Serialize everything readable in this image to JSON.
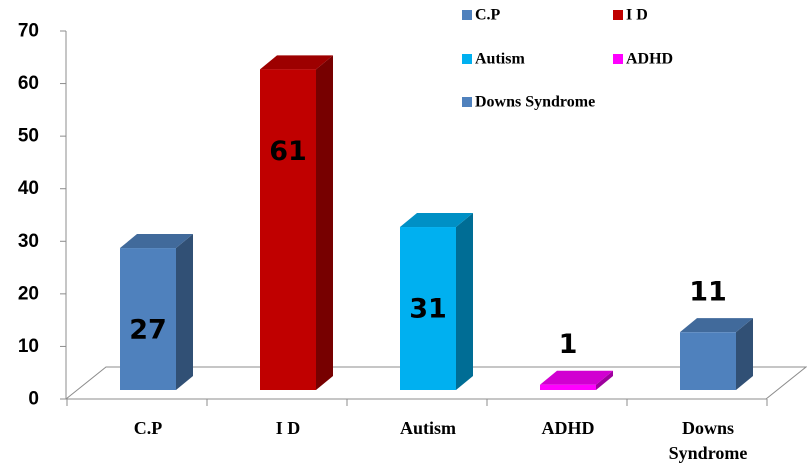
{
  "chart_data": {
    "type": "bar",
    "categories": [
      "C.P",
      "I D",
      "Autism",
      "ADHD",
      "Downs Syndrome"
    ],
    "category_tick_labels": [
      [
        "C.P"
      ],
      [
        "I D"
      ],
      [
        "Autism"
      ],
      [
        "ADHD"
      ],
      [
        "Downs",
        "Syndrome"
      ]
    ],
    "values": [
      27,
      61,
      31,
      1,
      11
    ],
    "value_labels": [
      "27",
      "61",
      "31",
      "1",
      "11"
    ],
    "colors": [
      "#4F81BD",
      "#C00000",
      "#00B0F0",
      "#FF00FF",
      "#4F81BD"
    ],
    "title": "",
    "xlabel": "",
    "ylabel": "",
    "ylim": [
      0,
      70
    ],
    "yticks": [
      0,
      10,
      20,
      30,
      40,
      50,
      60,
      70
    ],
    "grid": false,
    "legend": {
      "placement": "top-right",
      "entries": [
        "C.P",
        "I D",
        "Autism",
        "ADHD",
        "Downs Syndrome"
      ]
    },
    "style": "3d-column"
  }
}
